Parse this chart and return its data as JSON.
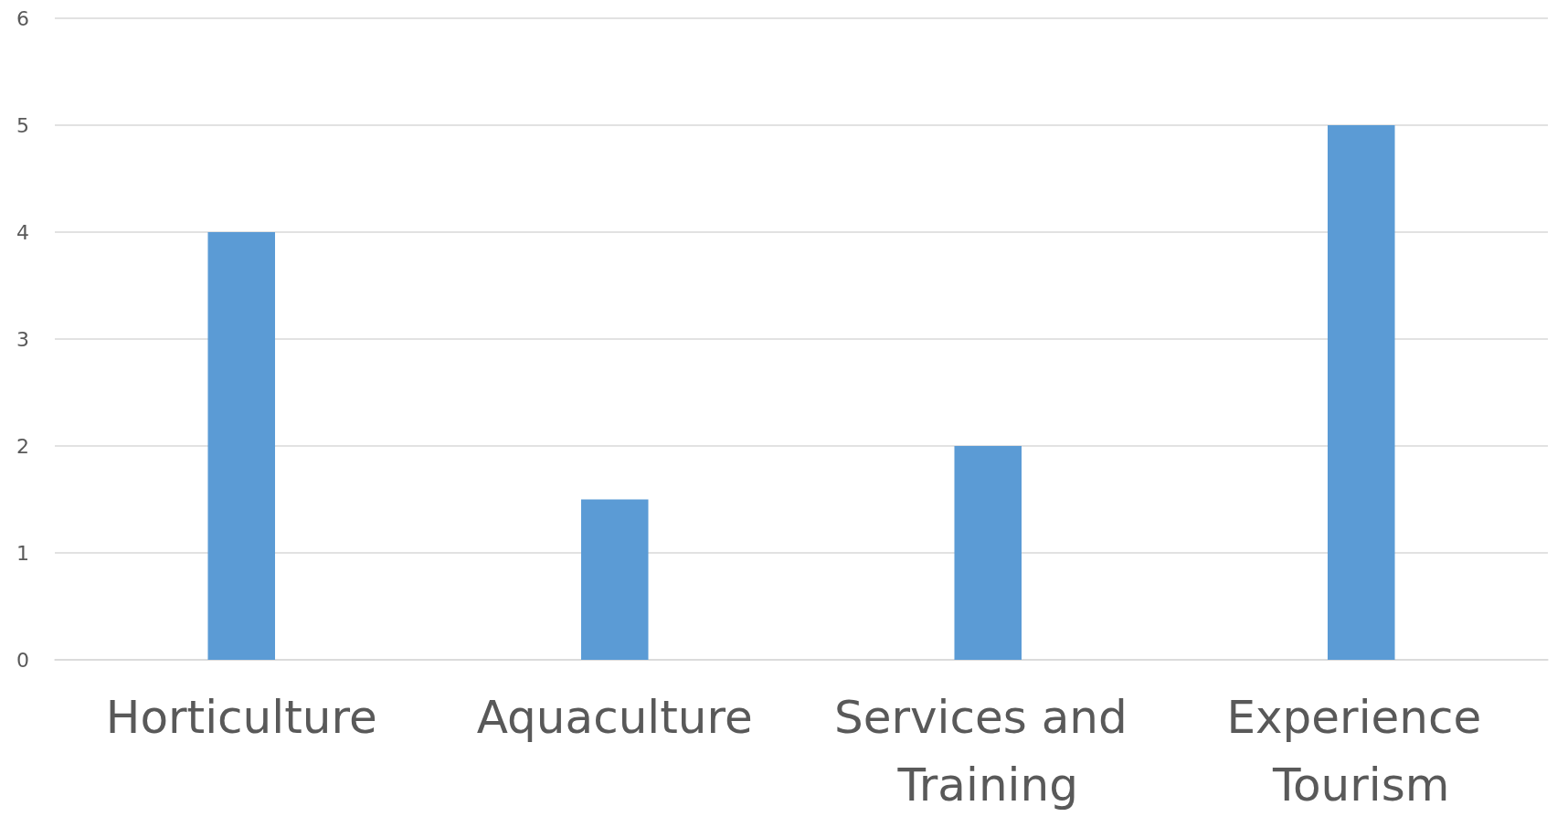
{
  "chart_data": {
    "type": "bar",
    "categories": [
      "Horticulture",
      "Aquaculture",
      "Services and Training",
      "Experience Tourism"
    ],
    "values": [
      4,
      1.5,
      2,
      5
    ],
    "color": "#5b9bd5",
    "ylim": [
      0,
      6
    ],
    "yticks": [
      0,
      1,
      2,
      3,
      4,
      5,
      6
    ],
    "grid": "y"
  }
}
